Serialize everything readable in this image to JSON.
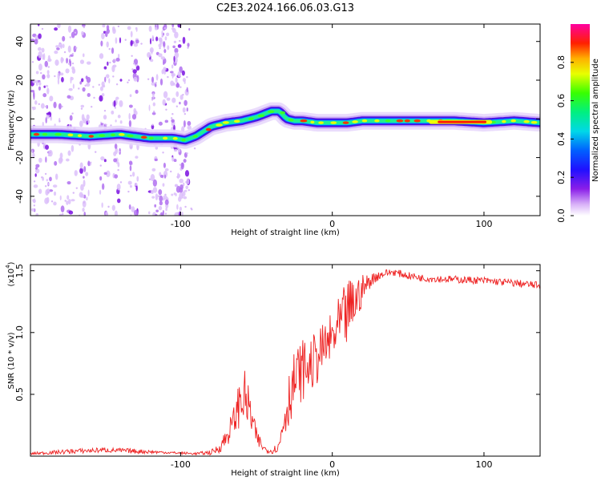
{
  "figure": {
    "title": "C2E3.2024.166.06.03.G13"
  },
  "chart_data": [
    {
      "type": "heatmap",
      "title": "C2E3.2024.166.06.03.G13",
      "xlabel": "Height of straight line (km)",
      "ylabel": "Frequency (Hz)",
      "xlim": [
        -199,
        137
      ],
      "ylim": [
        -50,
        49
      ],
      "x_ticks": [
        -100,
        0,
        100
      ],
      "x_tick_labels": [
        "-100",
        "0",
        "100"
      ],
      "y_ticks": [
        -40,
        -20,
        0,
        20,
        40
      ],
      "y_tick_labels": [
        "-40",
        "-20",
        "0",
        "20",
        "40"
      ],
      "colorbar": {
        "label": "Normalized spectral amplitude",
        "range": [
          0,
          1
        ],
        "ticks": [
          0.0,
          0.2,
          0.4,
          0.6,
          0.8
        ],
        "tick_labels": [
          "0.0",
          "0.2",
          "0.4",
          "0.6",
          "0.8"
        ],
        "colormap": "rainbow (white-purple-blue-cyan-green-yellow-orange-red-magenta)"
      },
      "ridge": {
        "description": "dominant frequency ridge vs height",
        "x": [
          -199,
          -180,
          -160,
          -140,
          -120,
          -105,
          -97,
          -90,
          -80,
          -70,
          -60,
          -50,
          -40,
          -35,
          -30,
          -25,
          -20,
          -10,
          0,
          10,
          20,
          40,
          60,
          80,
          100,
          120,
          137
        ],
        "y": [
          -8,
          -8,
          -9,
          -8,
          -10,
          -10,
          -11,
          -9,
          -4,
          -2,
          -1,
          1,
          4,
          4,
          0,
          -1,
          -1,
          -2,
          -2,
          -2,
          -1,
          -1,
          -1,
          -1,
          -2,
          -1,
          -2
        ]
      }
    },
    {
      "type": "line",
      "xlabel": "Height of straight line (km)",
      "ylabel": "SNR (10 * v/v)",
      "y_multiplier_label": "(x10",
      "y_multiplier_exp": "4",
      "xlim": [
        -199,
        137
      ],
      "ylim": [
        0,
        1.55
      ],
      "x_ticks": [
        -100,
        0,
        100
      ],
      "x_tick_labels": [
        "-100",
        "0",
        "100"
      ],
      "y_ticks": [
        0.5,
        1.0,
        1.5
      ],
      "y_tick_labels": [
        "0.5",
        "1.0",
        "1.5"
      ],
      "series": [
        {
          "color": "#ee2222",
          "x": [
            -199,
            -170,
            -150,
            -130,
            -110,
            -90,
            -80,
            -75,
            -70,
            -65,
            -62,
            -59,
            -56,
            -53,
            -50,
            -45,
            -40,
            -35,
            -32,
            -30,
            -27,
            -24,
            -20,
            -15,
            -10,
            -5,
            0,
            5,
            10,
            15,
            20,
            25,
            30,
            35,
            40,
            50,
            60,
            80,
            100,
            120,
            137
          ],
          "y": [
            0.02,
            0.04,
            0.05,
            0.04,
            0.03,
            0.02,
            0.03,
            0.06,
            0.15,
            0.28,
            0.4,
            0.5,
            0.42,
            0.3,
            0.15,
            0.06,
            0.04,
            0.08,
            0.3,
            0.4,
            0.55,
            0.62,
            0.7,
            0.72,
            0.8,
            0.88,
            0.95,
            1.05,
            1.15,
            1.25,
            1.35,
            1.42,
            1.46,
            1.48,
            1.49,
            1.46,
            1.44,
            1.43,
            1.42,
            1.4,
            1.38
          ],
          "noise": [
            0.01,
            0.02,
            0.02,
            0.02,
            0.01,
            0.01,
            0.02,
            0.04,
            0.08,
            0.12,
            0.18,
            0.25,
            0.2,
            0.14,
            0.08,
            0.03,
            0.02,
            0.05,
            0.18,
            0.22,
            0.25,
            0.25,
            0.25,
            0.22,
            0.22,
            0.2,
            0.22,
            0.25,
            0.28,
            0.22,
            0.12,
            0.06,
            0.04,
            0.03,
            0.03,
            0.03,
            0.03,
            0.03,
            0.03,
            0.03,
            0.03
          ]
        }
      ]
    }
  ]
}
